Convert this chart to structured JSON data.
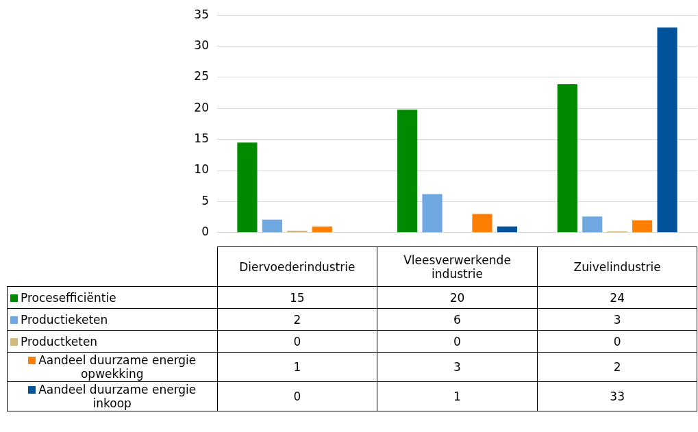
{
  "chart_data": {
    "type": "bar",
    "categories": [
      "Diervoederindustrie",
      "Vleesverwerkende industrie",
      "Zuivelindustrie"
    ],
    "series": [
      {
        "name": "Procesefficiëntie",
        "color": "#008a00",
        "values": [
          14.5,
          19.8,
          23.9
        ],
        "value_labels": [
          "15",
          "20",
          "24"
        ]
      },
      {
        "name": "Productieketen",
        "color": "#6fa8e0",
        "values": [
          2.1,
          6.2,
          2.6
        ],
        "value_labels": [
          "2",
          "6",
          "3"
        ]
      },
      {
        "name": "Productketen",
        "color": "#d4b87a",
        "values": [
          0.3,
          0,
          0.2
        ],
        "value_labels": [
          "0",
          "0",
          "0"
        ]
      },
      {
        "name": "Aandeel duurzame energie opwekking",
        "color": "#ff7f00",
        "values": [
          1,
          3,
          2
        ],
        "value_labels": [
          "1",
          "3",
          "2"
        ]
      },
      {
        "name": "Aandeel duurzame energie inkoop",
        "color": "#00539b",
        "values": [
          0,
          1,
          33
        ],
        "value_labels": [
          "0",
          "1",
          "33"
        ]
      }
    ],
    "ylim": [
      0,
      35
    ],
    "yticks": [
      0,
      5,
      10,
      15,
      20,
      25,
      30,
      35
    ],
    "grid": "y",
    "legend": "bottom"
  }
}
